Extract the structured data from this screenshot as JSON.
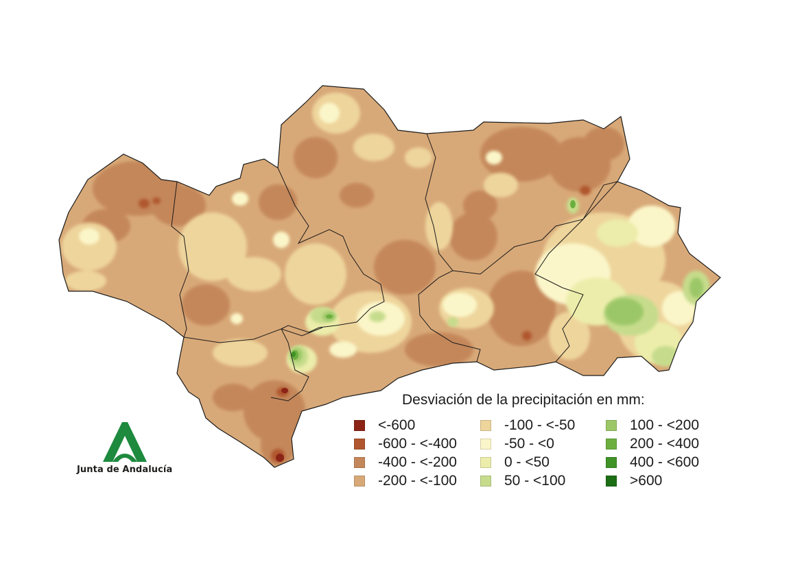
{
  "legend": {
    "title": "Desviación de la precipitación en mm:",
    "classes": [
      {
        "label": "<-600",
        "color": "#8b2416"
      },
      {
        "label": "-600 - <-400",
        "color": "#b0572f"
      },
      {
        "label": "-400 - <-200",
        "color": "#c4875a"
      },
      {
        "label": "-200 - <-100",
        "color": "#d8a978"
      },
      {
        "label": "-100 - <-50",
        "color": "#eed59c"
      },
      {
        "label": "-50 - <0",
        "color": "#fbf6c9"
      },
      {
        "label": "0 - <50",
        "color": "#ecedaa"
      },
      {
        "label": "50 - <100",
        "color": "#c6dc8c"
      },
      {
        "label": "100 - <200",
        "color": "#9cc768"
      },
      {
        "label": "200 - <400",
        "color": "#6caf3f"
      },
      {
        "label": "400 - <600",
        "color": "#3f9226"
      },
      {
        "label": ">600",
        "color": "#1b6e14"
      }
    ]
  },
  "logo": {
    "text": "Junta de Andalucía",
    "color": "#1d8a3e"
  },
  "map": {
    "region": "Andalucía",
    "base_color": "#d8a978",
    "border_color": "#1a1a1a"
  }
}
